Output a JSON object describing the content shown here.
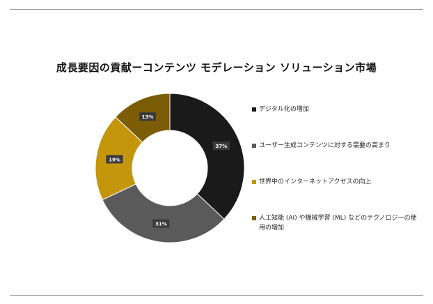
{
  "title": "成長要因の貢献ーコンテンツ モデレーション ソリューション市場",
  "chart_data": {
    "type": "pie",
    "donut": true,
    "title": "成長要因の貢献ーコンテンツ モデレーション ソリューション市場",
    "categories": [
      "デジタル化の増加",
      "ユーザー生成コンテンツに対する需要の高まり",
      "世界中のインターネットアクセスの向上",
      "人工知能 (AI) や機械学習 (ML) などのテクノロジーの使用の増加"
    ],
    "values": [
      37,
      31,
      19,
      13
    ],
    "labels": [
      "37%",
      "31%",
      "19%",
      "13%"
    ],
    "colors": [
      "#1b1a1b",
      "#5a5a5a",
      "#c4960b",
      "#7a5d06"
    ],
    "legend_position": "right"
  }
}
